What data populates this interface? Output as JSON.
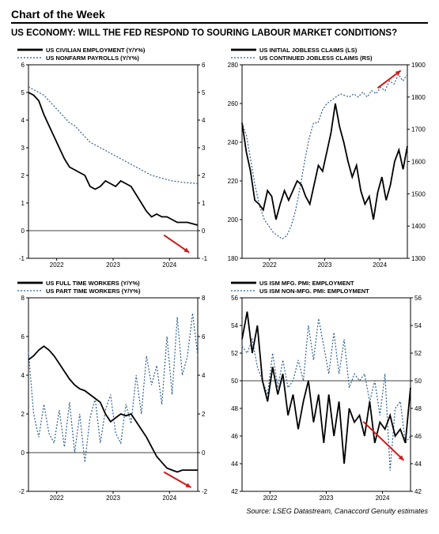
{
  "header": "Chart of the Week",
  "title": "US ECONOMY: WILL THE FED RESPOND TO SOURING LABOUR MARKET CONDITIONS?",
  "footer": "Source: LSEG Datastream, Canaccord Genuity estimates",
  "colors": {
    "solid": "#000000",
    "dash": "#2f5f8f",
    "axis": "#000000",
    "bg": "#ffffff",
    "arrow": "#d01919"
  },
  "x_labels": [
    "2022",
    "2023",
    "2024"
  ],
  "line_widths": {
    "solid": 1.8,
    "dash": 1.2,
    "axis": 1.0
  },
  "panels": {
    "tl": {
      "legend": [
        "US CIVILIAN EMPLOYMENT (Y/Y%)",
        "US NONFARM PAYROLLS (Y/Y%)"
      ],
      "ylim": [
        -1,
        6
      ],
      "yticks": [
        -1,
        0,
        1,
        2,
        3,
        4,
        5,
        6
      ],
      "zero_line": true,
      "series_solid": [
        5.0,
        4.9,
        4.7,
        4.2,
        3.8,
        3.4,
        3.0,
        2.6,
        2.3,
        2.2,
        2.1,
        2.0,
        1.6,
        1.5,
        1.6,
        1.8,
        1.7,
        1.6,
        1.8,
        1.7,
        1.6,
        1.3,
        1.0,
        0.7,
        0.5,
        0.6,
        0.5,
        0.5,
        0.4,
        0.3,
        0.3,
        0.3,
        0.25,
        0.2
      ],
      "series_dash": [
        5.2,
        5.1,
        5.0,
        4.9,
        4.7,
        4.5,
        4.3,
        4.1,
        3.9,
        3.8,
        3.6,
        3.4,
        3.2,
        3.1,
        3.0,
        2.9,
        2.8,
        2.7,
        2.6,
        2.5,
        2.4,
        2.3,
        2.2,
        2.1,
        2.0,
        1.95,
        1.9,
        1.85,
        1.8,
        1.78,
        1.75,
        1.73,
        1.72,
        1.7
      ],
      "arrow": {
        "from": [
          0.8,
          0.12
        ],
        "to": [
          0.95,
          0.03
        ]
      }
    },
    "tr": {
      "legend": [
        "US INITIAL JOBLESS CLAIMS (LS)",
        "US CONTINUED JOBLESS CLAIMS (RS)"
      ],
      "ylimL": [
        180,
        280
      ],
      "yticksL": [
        180,
        200,
        220,
        240,
        260,
        280
      ],
      "ylimR": [
        1300,
        1900
      ],
      "yticksR": [
        1300,
        1400,
        1500,
        1600,
        1700,
        1800,
        1900
      ],
      "series_solid": [
        250,
        235,
        225,
        210,
        208,
        205,
        215,
        212,
        200,
        208,
        215,
        210,
        215,
        220,
        218,
        212,
        208,
        218,
        228,
        225,
        235,
        245,
        260,
        248,
        240,
        230,
        222,
        228,
        215,
        208,
        212,
        200,
        214,
        222,
        210,
        218,
        230,
        236,
        226,
        238
      ],
      "series_dash": [
        1720,
        1680,
        1600,
        1520,
        1460,
        1420,
        1400,
        1380,
        1370,
        1360,
        1370,
        1400,
        1450,
        1520,
        1600,
        1670,
        1720,
        1720,
        1760,
        1780,
        1790,
        1800,
        1810,
        1805,
        1800,
        1810,
        1800,
        1815,
        1800,
        1820,
        1810,
        1830,
        1820,
        1850,
        1840,
        1870,
        1850,
        1870
      ],
      "arrow": {
        "from": [
          0.82,
          0.88
        ],
        "to": [
          0.96,
          0.97
        ]
      }
    },
    "bl": {
      "legend": [
        "US FULL TIME WORKERS (Y/Y%)",
        "US PART TIME WORKERS (Y/Y%)"
      ],
      "ylim": [
        -2,
        8
      ],
      "yticks": [
        -2,
        0,
        2,
        4,
        6,
        8
      ],
      "zero_line": true,
      "series_solid": [
        4.8,
        5.0,
        5.3,
        5.5,
        5.3,
        5.0,
        4.6,
        4.2,
        3.8,
        3.5,
        3.3,
        3.2,
        3.0,
        2.8,
        2.6,
        2.0,
        1.6,
        1.8,
        2.0,
        1.9,
        2.0,
        1.6,
        1.2,
        0.8,
        0.3,
        -0.2,
        -0.5,
        -0.8,
        -0.9,
        -1.0,
        -0.9,
        -0.9,
        -0.9,
        -0.9
      ],
      "series_dash": [
        5.2,
        2.0,
        0.8,
        2.5,
        1.0,
        0.5,
        2.2,
        0.3,
        2.6,
        0.0,
        2.0,
        -0.5,
        1.8,
        2.8,
        0.5,
        2.2,
        3.0,
        1.0,
        0.5,
        2.5,
        1.5,
        4.0,
        2.0,
        5.0,
        3.5,
        4.5,
        2.5,
        6.0,
        3.0,
        7.0,
        4.0,
        5.0,
        7.2,
        5.0
      ],
      "arrow": {
        "from": [
          0.8,
          0.1
        ],
        "to": [
          0.96,
          0.02
        ]
      }
    },
    "br": {
      "legend": [
        "US ISM MFG. PMI: EMPLOYMENT",
        "US ISM NON-MFG. PMI: EMPLOYMENT"
      ],
      "ylim": [
        42,
        56
      ],
      "yticks": [
        42,
        44,
        46,
        48,
        50,
        52,
        54,
        56
      ],
      "zero_at": 50,
      "series_solid": [
        53.0,
        55.0,
        52.0,
        54.0,
        50.0,
        48.5,
        51.0,
        49.0,
        50.5,
        47.5,
        49.0,
        46.5,
        48.5,
        50.0,
        47.0,
        49.0,
        45.5,
        49.0,
        46.0,
        48.5,
        44.0,
        48.0,
        47.0,
        47.5,
        46.0,
        48.5,
        45.5,
        47.0,
        46.5,
        47.5,
        46.0,
        46.5,
        45.5,
        49.5
      ],
      "series_dash": [
        52.5,
        52.0,
        53.0,
        51.0,
        50.0,
        49.0,
        52.0,
        49.5,
        51.5,
        49.5,
        50.0,
        51.5,
        50.0,
        54.0,
        51.5,
        54.5,
        52.5,
        50.5,
        53.5,
        50.5,
        53.0,
        49.5,
        50.5,
        50.0,
        50.5,
        48.5,
        50.0,
        47.5,
        50.5,
        43.5,
        48.0,
        48.5,
        45.5,
        46.0
      ],
      "arrow": {
        "from": [
          0.72,
          0.36
        ],
        "to": [
          0.96,
          0.16
        ]
      }
    }
  }
}
